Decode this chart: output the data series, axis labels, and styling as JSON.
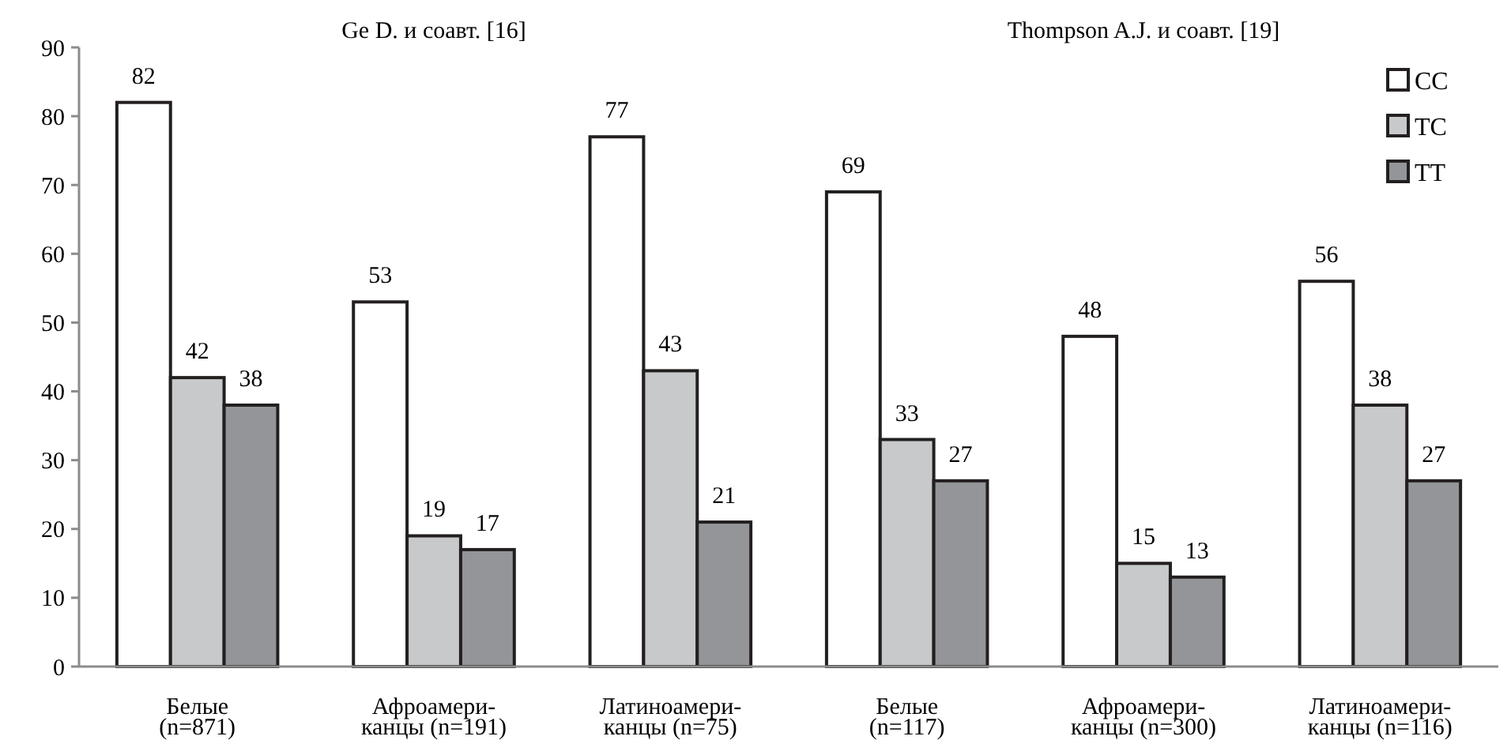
{
  "chart_data": {
    "type": "bar",
    "categories": [
      "Белые\n(n=871)",
      "Афроамери-\nканцы (n=191)",
      "Латиноамери-\nканцы (n=75)",
      "Белые\n(n=117)",
      "Афроамери-\nканцы (n=300)",
      "Латиноамери-\nканцы (n=116)"
    ],
    "series": [
      {
        "name": "CC",
        "color": "#ffffff",
        "values": [
          82,
          53,
          77,
          69,
          48,
          56
        ]
      },
      {
        "name": "TC",
        "color": "#c8c9cb",
        "values": [
          42,
          19,
          43,
          33,
          15,
          38
        ]
      },
      {
        "name": "TT",
        "color": "#939598",
        "values": [
          38,
          17,
          21,
          27,
          13,
          27
        ]
      }
    ],
    "ylim": [
      0,
      90
    ],
    "yticks": [
      0,
      10,
      20,
      30,
      40,
      50,
      60,
      70,
      80,
      90
    ],
    "grid": false,
    "legend": "top right",
    "data_labels": true,
    "annotations": [
      "Ge D. и соавт. [16]",
      "Thompson A.J. и соавт. [19]"
    ]
  }
}
